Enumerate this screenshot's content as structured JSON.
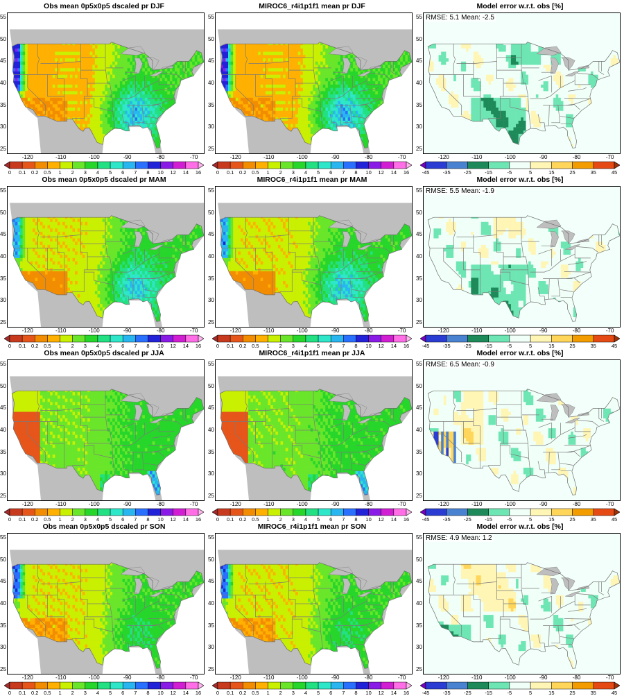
{
  "scales": {
    "precip": {
      "tick_labels": [
        "0",
        "0.1",
        "0.2",
        "0.5",
        "1",
        "2",
        "3",
        "4",
        "5",
        "6",
        "7",
        "8",
        "10",
        "12",
        "14",
        "16"
      ],
      "colors": [
        "#a52a2a",
        "#c83a1e",
        "#e6551a",
        "#f28c00",
        "#ffb000",
        "#c8f000",
        "#6ae62a",
        "#27d62a",
        "#23e082",
        "#2ee6c8",
        "#29b6f0",
        "#2a70ff",
        "#2222d8",
        "#8a1ae6",
        "#d21ed2",
        "#ff6ee6",
        "#ffb4f0"
      ]
    },
    "error": {
      "tick_labels": [
        "-45",
        "-35",
        "-25",
        "-15",
        "-5",
        "5",
        "15",
        "25",
        "35",
        "45"
      ],
      "colors": [
        "#7a00c8",
        "#2a3cd2",
        "#4a82d2",
        "#1e8a5a",
        "#6ee6b4",
        "#f0fff8",
        "#fff5b4",
        "#ffd65a",
        "#f29c00",
        "#e64a14",
        "#a0320a"
      ]
    }
  },
  "axes": {
    "x_ticks": [
      "-120",
      "-110",
      "-100",
      "-90",
      "-80",
      "-70"
    ],
    "y_ticks": [
      "55",
      "50",
      "45",
      "40",
      "35",
      "30",
      "25"
    ]
  },
  "rows": [
    {
      "season": "DJF",
      "obs_title": "Obs mean 0p5x0p5 dscaled pr DJF",
      "model_title": "MIROC6_r4i1p1f1 mean pr DJF",
      "error_title": "Model error w.r.t. obs [%]",
      "error_stats": "RMSE: 5.1  Mean: -2.5"
    },
    {
      "season": "MAM",
      "obs_title": "Obs mean 0p5x0p5 dscaled pr MAM",
      "model_title": "MIROC6_r4i1p1f1 mean pr MAM",
      "error_title": "Model error w.r.t. obs [%]",
      "error_stats": "RMSE: 5.5  Mean: -1.9"
    },
    {
      "season": "JJA",
      "obs_title": "Obs mean 0p5x0p5 dscaled pr JJA",
      "model_title": "MIROC6_r4i1p1f1 mean pr JJA",
      "error_title": "Model error w.r.t. obs [%]",
      "error_stats": "RMSE: 6.5  Mean: -0.9"
    },
    {
      "season": "SON",
      "obs_title": "Obs mean 0p5x0p5 dscaled pr SON",
      "model_title": "MIROC6_r4i1p1f1 mean pr SON",
      "error_title": "Model error w.r.t. obs [%]",
      "error_stats": "RMSE: 4.9  Mean: 1.2"
    }
  ]
}
